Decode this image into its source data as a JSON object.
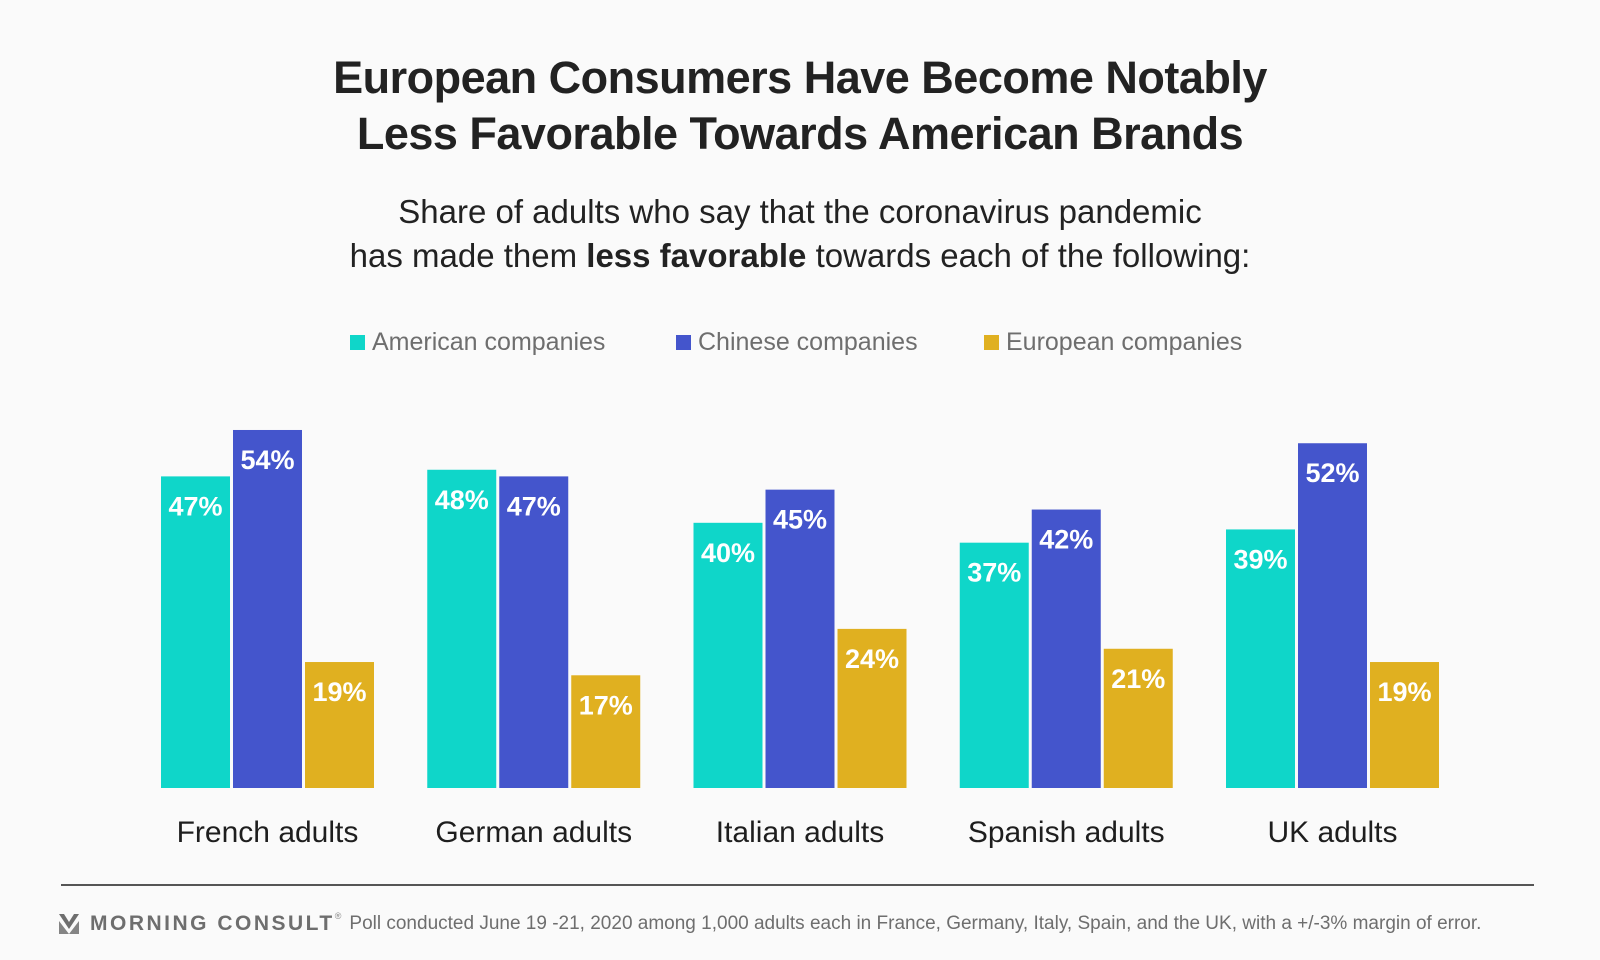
{
  "header": {
    "title_line1": "European Consumers Have Become Notably",
    "title_line2": "Less Favorable Towards American Brands",
    "subtitle_line1": "Share of adults who say that the coronavirus pandemic",
    "subtitle_line2_pre": "has made them ",
    "subtitle_line2_bold": "less favorable",
    "subtitle_line2_post": " towards each of the following:"
  },
  "chart_data": {
    "type": "bar",
    "title": "European Consumers Have Become Notably Less Favorable Towards American Brands",
    "subtitle": "Share of adults who say that the coronavirus pandemic has made them less favorable towards each of the following:",
    "xlabel": "",
    "ylabel": "",
    "ylim": [
      0,
      60
    ],
    "grid": false,
    "legend_position": "top-center",
    "categories": [
      "French adults",
      "German adults",
      "Italian adults",
      "Spanish adults",
      "UK adults"
    ],
    "series": [
      {
        "name": "American companies",
        "color": "#0fd6c9",
        "values": [
          47,
          48,
          40,
          37,
          39
        ]
      },
      {
        "name": "Chinese companies",
        "color": "#4455cc",
        "values": [
          54,
          47,
          45,
          42,
          52
        ]
      },
      {
        "name": "European companies",
        "color": "#e0b020",
        "values": [
          19,
          17,
          24,
          21,
          19
        ]
      }
    ],
    "value_suffix": "%"
  },
  "footer": {
    "logo_icon": "morning-consult-chevron-icon",
    "brand": "MORNING CONSULT",
    "registered_mark": "®",
    "note": "Poll conducted June 19 -21, 2020 among 1,000 adults each in France, Germany, Italy, Spain, and the UK, with a +/-3% margin of error."
  }
}
